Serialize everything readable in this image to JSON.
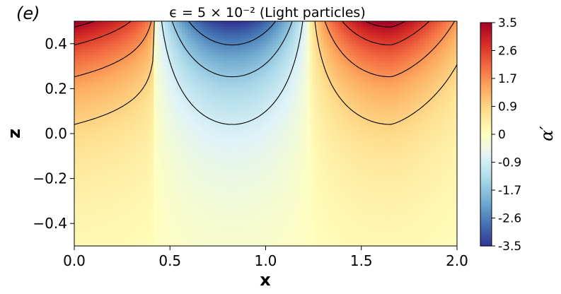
{
  "panel_label": "(e)",
  "chart_data": {
    "type": "heatmap",
    "title": "ϵ = 5 × 10⁻² (Light particles)",
    "xlabel": "x",
    "ylabel": "z",
    "xlim": [
      0.0,
      2.0
    ],
    "ylim": [
      -0.5,
      0.5
    ],
    "xticks": [
      "0.0",
      "0.5",
      "1.0",
      "1.5",
      "2.0"
    ],
    "yticks": [
      "−0.4",
      "−0.2",
      "0.0",
      "0.2",
      "0.4"
    ],
    "grid": false,
    "colormap": "RdYlBu_r",
    "colormap_stops": [
      "#313695",
      "#4575b4",
      "#74add1",
      "#abd9e9",
      "#e0f3f8",
      "#ffffbf",
      "#fee090",
      "#fdae61",
      "#f46d43",
      "#d73027",
      "#a50026"
    ],
    "colorbar": {
      "label": "α′",
      "range": [
        -3.5,
        3.5
      ],
      "ticks": [
        "3.5",
        "2.6",
        "1.7",
        "0.9",
        "0",
        "-0.9",
        "-1.7",
        "-2.6",
        "-3.5"
      ]
    },
    "field": {
      "description": "perturbation field alpha' with cells centred near x=0.0 (positive), x=0.82 (negative), x=1.65 (positive); magnitude largest at top (z=0.5), decaying toward z=-0.5",
      "cells": [
        {
          "x_center": 0.0,
          "sign": 1,
          "peak": 3.5
        },
        {
          "x_center": 0.82,
          "sign": -1,
          "peak": 3.5
        },
        {
          "x_center": 1.65,
          "sign": 1,
          "peak": 3.5
        }
      ],
      "zero_lines_x": [
        0.42,
        1.23
      ]
    },
    "contour_levels": [
      -2.6,
      -1.7,
      -0.9,
      0.9,
      1.7,
      2.6,
      3.3
    ],
    "contour_style": {
      "negative": "dashed",
      "positive": "solid",
      "color": "#000000"
    }
  }
}
